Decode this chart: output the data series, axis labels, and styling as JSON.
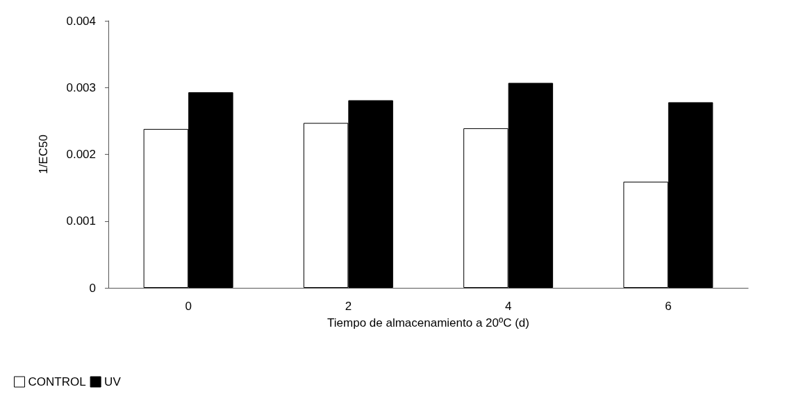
{
  "chart_data": {
    "type": "bar",
    "xlabel": "Tiempo de almacenamiento a 20ºC (d)",
    "ylabel": "1/EC50",
    "categories": [
      "0",
      "2",
      "4",
      "6"
    ],
    "series": [
      {
        "name": "CONTROL",
        "color": "#ffffff",
        "values": [
          0.00238,
          0.00247,
          0.00239,
          0.00159
        ]
      },
      {
        "name": "UV",
        "color": "#000000",
        "values": [
          0.00293,
          0.00281,
          0.00307,
          0.00278
        ]
      }
    ],
    "ylim": [
      0,
      0.004
    ],
    "yticks": [
      0,
      0.001,
      0.002,
      0.003,
      0.004
    ],
    "grid": false,
    "legend": "bottom left"
  }
}
